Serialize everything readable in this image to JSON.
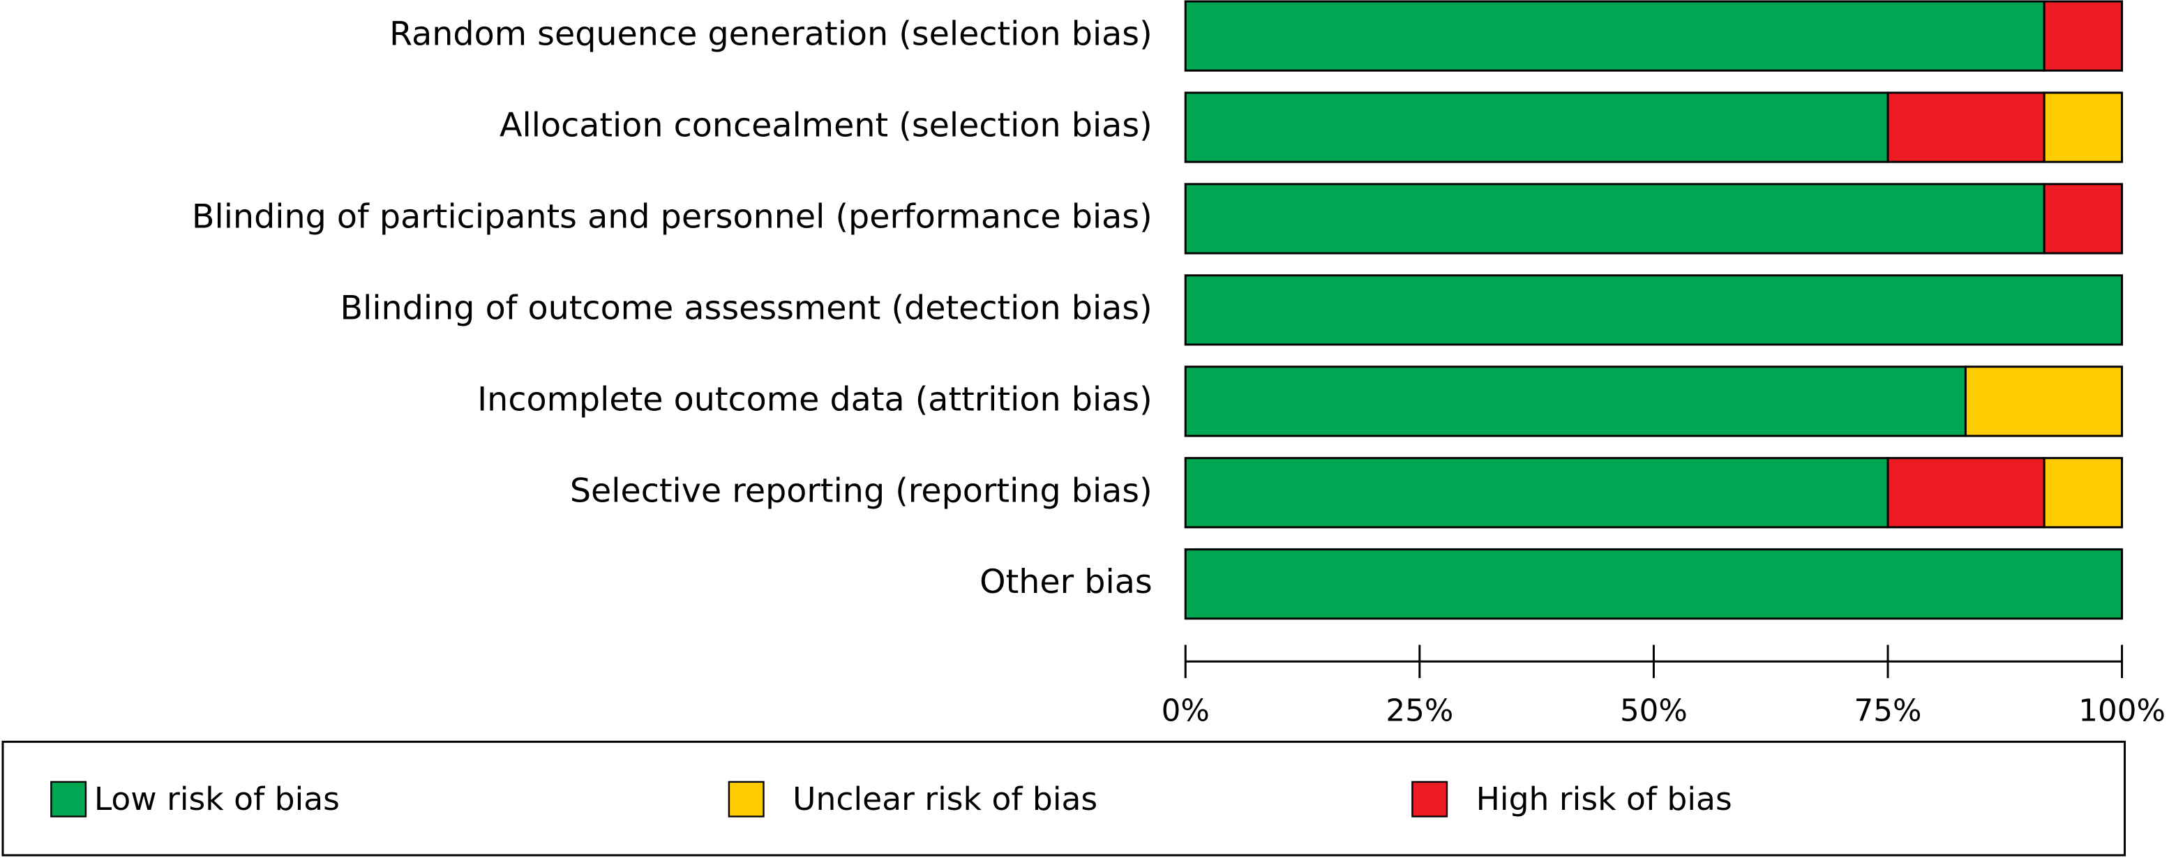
{
  "chart_data": {
    "type": "stacked-bar-horizontal",
    "categories": [
      "Random sequence generation (selection bias)",
      "Allocation concealment (selection bias)",
      "Blinding of participants and personnel (performance bias)",
      "Blinding of outcome assessment (detection bias)",
      "Incomplete outcome data (attrition bias)",
      "Selective reporting (reporting bias)",
      "Other bias"
    ],
    "series": [
      {
        "name": "Low risk of bias",
        "color": "#00a651",
        "values": [
          91.7,
          75,
          91.7,
          100,
          83.3,
          75,
          100
        ]
      },
      {
        "name": "Unclear risk of bias",
        "color": "#ffcc00",
        "values": [
          0,
          8.3,
          0,
          0,
          16.7,
          8.3,
          0
        ]
      },
      {
        "name": "High risk of bias",
        "color": "#ed1c24",
        "values": [
          8.3,
          16.7,
          8.3,
          0,
          0,
          16.7,
          0
        ]
      }
    ],
    "xlim": [
      0,
      100
    ],
    "xticks": [
      {
        "value": 0,
        "label": "0%"
      },
      {
        "value": 25,
        "label": "25%"
      },
      {
        "value": 50,
        "label": "50%"
      },
      {
        "value": 75,
        "label": "75%"
      },
      {
        "value": 100,
        "label": "100%"
      }
    ],
    "legend": "bottom"
  }
}
